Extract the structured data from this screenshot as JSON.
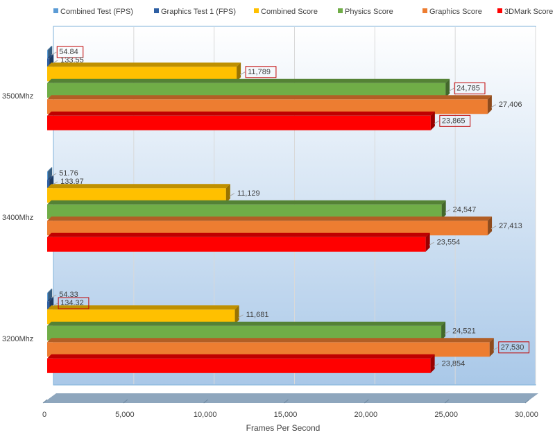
{
  "chart_data": {
    "type": "bar",
    "orientation": "horizontal",
    "style": "3d-clustered",
    "title": "",
    "xlabel": "Frames Per Second",
    "ylabel": "",
    "xlim": [
      0,
      30000
    ],
    "x_ticks": [
      0,
      5000,
      10000,
      15000,
      20000,
      25000,
      30000
    ],
    "x_tick_labels": [
      "0",
      "5,000",
      "10,000",
      "15,000",
      "20,000",
      "25,000",
      "30,000"
    ],
    "grid": true,
    "legend_position": "top",
    "categories": [
      "3500Mhz",
      "3400Mhz",
      "3200Mhz"
    ],
    "series": [
      {
        "name": "Combined Test (FPS)",
        "color": "#5b9bd5",
        "values": [
          54.84,
          51.76,
          54.33
        ],
        "labels": [
          "54.84",
          "51.76",
          "54.33"
        ],
        "highlighted": [
          true,
          false,
          false
        ]
      },
      {
        "name": "Graphics Test 1 (FPS)",
        "color": "#2e5fa3",
        "values": [
          133.55,
          133.97,
          134.32
        ],
        "labels": [
          "133.55",
          "133.97",
          "134.32"
        ],
        "highlighted": [
          false,
          false,
          true
        ]
      },
      {
        "name": "Combined Score",
        "color": "#ffc000",
        "values": [
          11789,
          11129,
          11681
        ],
        "labels": [
          "11,789",
          "11,129",
          "11,681"
        ],
        "highlighted": [
          true,
          false,
          false
        ]
      },
      {
        "name": "Physics Score",
        "color": "#70ad47",
        "values": [
          24785,
          24547,
          24521
        ],
        "labels": [
          "24,785",
          "24,547",
          "24,521"
        ],
        "highlighted": [
          true,
          false,
          false
        ]
      },
      {
        "name": "Graphics Score",
        "color": "#ed7d31",
        "values": [
          27406,
          27413,
          27530
        ],
        "labels": [
          "27,406",
          "27,413",
          "27,530"
        ],
        "highlighted": [
          false,
          false,
          true
        ]
      },
      {
        "name": "3DMark Score",
        "color": "#ff0000",
        "values": [
          23865,
          23554,
          23854
        ],
        "labels": [
          "23,865",
          "23,554",
          "23,854"
        ],
        "highlighted": [
          true,
          false,
          false
        ]
      }
    ],
    "colors": {
      "plot_gradient_top": "#ffffff",
      "plot_gradient_bottom": "#a9c8e8",
      "plot_border": "#7fb2d9",
      "floor": "#8ea6bd",
      "gridline": "#d9d9d9",
      "highlight_box": "#c00000"
    }
  }
}
